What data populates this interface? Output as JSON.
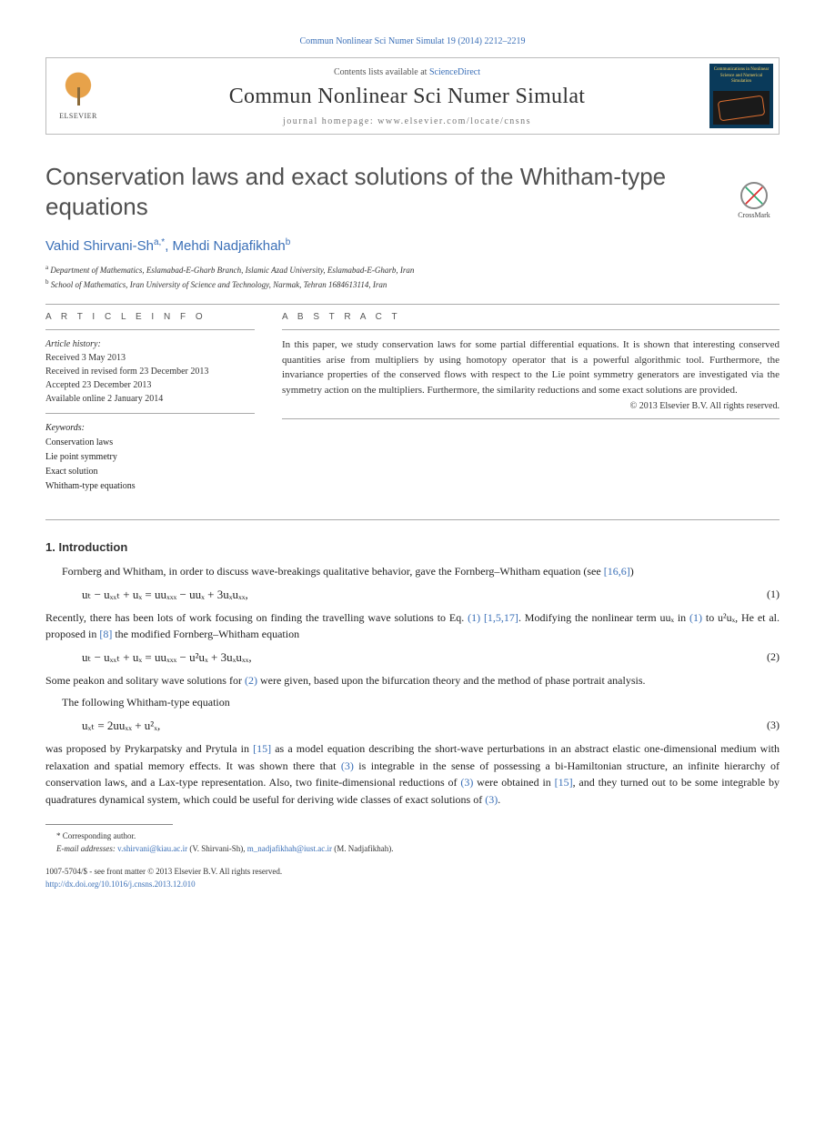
{
  "header_cite": "Commun Nonlinear Sci Numer Simulat 19 (2014) 2212–2219",
  "journal_box": {
    "contents_prefix": "Contents lists available at ",
    "contents_link": "ScienceDirect",
    "journal_name": "Commun Nonlinear Sci Numer Simulat",
    "homepage_label": "journal homepage: www.elsevier.com/locate/cnsns",
    "publisher": "ELSEVIER",
    "cover_title": "Communications in Nonlinear Science and Numerical Simulation"
  },
  "crossmark_label": "CrossMark",
  "title": "Conservation laws and exact solutions of the Whitham-type equations",
  "authors": [
    {
      "name": "Vahid Shirvani-Sh",
      "affil_mark": "a",
      "corr": true
    },
    {
      "name": "Mehdi Nadjafikhah",
      "affil_mark": "b",
      "corr": false
    }
  ],
  "affiliations": [
    {
      "mark": "a",
      "text": "Department of Mathematics, Eslamabad-E-Gharb Branch, Islamic Azad University, Eslamabad-E-Gharb, Iran"
    },
    {
      "mark": "b",
      "text": "School of Mathematics, Iran University of Science and Technology, Narmak, Tehran 1684613114, Iran"
    }
  ],
  "article_info": {
    "section_label": "A R T I C L E   I N F O",
    "history_label": "Article history:",
    "history": [
      "Received 3 May 2013",
      "Received in revised form 23 December 2013",
      "Accepted 23 December 2013",
      "Available online 2 January 2014"
    ],
    "keywords_label": "Keywords:",
    "keywords": [
      "Conservation laws",
      "Lie point symmetry",
      "Exact solution",
      "Whitham-type equations"
    ]
  },
  "abstract": {
    "section_label": "A B S T R A C T",
    "text": "In this paper, we study conservation laws for some partial differential equations. It is shown that interesting conserved quantities arise from multipliers by using homotopy operator that is a powerful algorithmic tool. Furthermore, the invariance properties of the conserved flows with respect to the Lie point symmetry generators are investigated via the symmetry action on the multipliers. Furthermore, the similarity reductions and some exact solutions are provided.",
    "copyright": "© 2013 Elsevier B.V. All rights reserved."
  },
  "section1": {
    "heading": "1. Introduction",
    "para1_a": "Fornberg and Whitham, in order to discuss wave-breakings qualitative behavior, gave the Fornberg–Whitham equation (see ",
    "para1_ref": "[16,6]",
    "para1_b": ")",
    "eq1": "uₜ − uₓₓₜ + uₓ = uuₓₓₓ − uuₓ + 3uₓuₓₓ,",
    "eq1_num": "(1)",
    "para2_a": "Recently, there has been lots of work focusing on finding the travelling wave solutions to Eq. ",
    "para2_ref1": "(1)",
    "para2_ref2": "[1,5,17]",
    "para2_b": ". Modifying the nonlinear term uuₓ in ",
    "para2_ref3": "(1)",
    "para2_c": " to u²uₓ, He et al. proposed in ",
    "para2_ref4": "[8]",
    "para2_d": " the modified Fornberg–Whitham equation",
    "eq2": "uₜ − uₓₓₜ + uₓ = uuₓₓₓ − u²uₓ + 3uₓuₓₓ,",
    "eq2_num": "(2)",
    "para3_a": "Some peakon and solitary wave solutions for ",
    "para3_ref1": "(2)",
    "para3_b": " were given, based upon the bifurcation theory and the method of phase portrait analysis.",
    "para4": "The following Whitham-type equation",
    "eq3": "uₓₜ = 2uuₓₓ + u²ₓ,",
    "eq3_num": "(3)",
    "para5_a": "was proposed by Prykarpatsky and Prytula in ",
    "para5_ref1": "[15]",
    "para5_b": " as a model equation describing the short-wave perturbations in an abstract elastic one-dimensional medium with relaxation and spatial memory effects. It was shown there that ",
    "para5_ref2": "(3)",
    "para5_c": " is integrable in the sense of possessing a bi-Hamiltonian structure, an infinite hierarchy of conservation laws, and a Lax-type representation. Also, two finite-dimensional reductions of ",
    "para5_ref3": "(3)",
    "para5_d": " were obtained in ",
    "para5_ref4": "[15]",
    "para5_e": ", and they turned out to be some integrable by quadratures dynamical system, which could be useful for deriving wide classes of exact solutions of ",
    "para5_ref5": "(3)",
    "para5_f": "."
  },
  "footnotes": {
    "corr_label": "* Corresponding author.",
    "email_label": "E-mail addresses:",
    "emails": [
      {
        "addr": "v.shirvani@kiau.ac.ir",
        "who": "(V. Shirvani-Sh)"
      },
      {
        "addr": "m_nadjafikhah@iust.ac.ir",
        "who": "(M. Nadjafikhah)"
      }
    ]
  },
  "footer": {
    "line1": "1007-5704/$ - see front matter © 2013 Elsevier B.V. All rights reserved.",
    "doi": "http://dx.doi.org/10.1016/j.cnsns.2013.12.010"
  },
  "colors": {
    "link": "#3a6fb7",
    "text": "#222222",
    "heading": "#505050",
    "rule": "#aaaaaa"
  }
}
